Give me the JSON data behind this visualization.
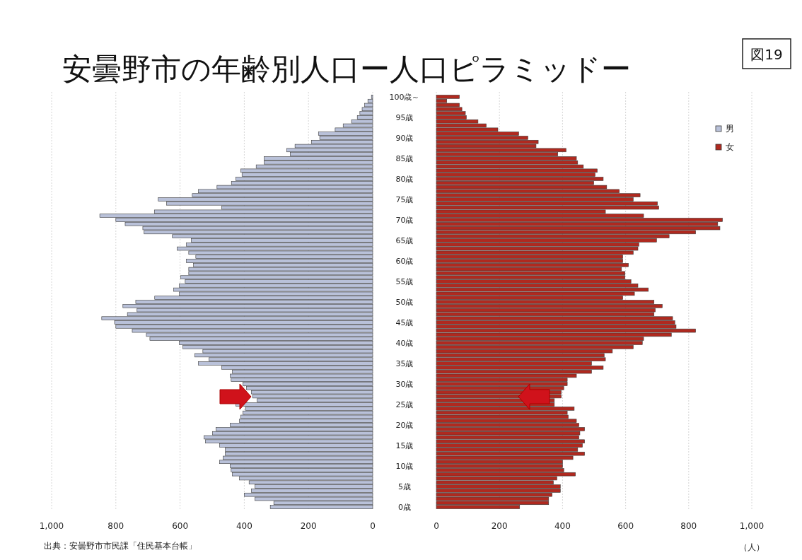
{
  "chart_data": [
    {
      "type": "bar",
      "orientation": "horizontal",
      "title": "安曇野市の年齢別人口ー人口ピラミッドー",
      "annotations": [
        "図19",
        "出典：安曇野市市民課「住民基本台帳」"
      ],
      "categories": [
        "100歳～",
        null,
        null,
        null,
        null,
        "95歳",
        null,
        null,
        null,
        null,
        "90歳",
        null,
        null,
        null,
        null,
        "85歳",
        null,
        null,
        null,
        null,
        "80歳",
        null,
        null,
        null,
        null,
        "75歳",
        null,
        null,
        null,
        null,
        "70歳",
        null,
        null,
        null,
        null,
        "65歳",
        null,
        null,
        null,
        null,
        "60歳",
        null,
        null,
        null,
        null,
        "55歳",
        null,
        null,
        null,
        null,
        "50歳",
        null,
        null,
        null,
        null,
        "45歳",
        null,
        null,
        null,
        null,
        "40歳",
        null,
        null,
        null,
        null,
        "35歳",
        null,
        null,
        null,
        null,
        "30歳",
        null,
        null,
        null,
        null,
        "25歳",
        null,
        null,
        null,
        null,
        "20歳",
        null,
        null,
        null,
        null,
        "15歳",
        null,
        null,
        null,
        null,
        "10歳",
        null,
        null,
        null,
        null,
        "5歳",
        null,
        null,
        null,
        null,
        "0歳"
      ],
      "series": [
        {
          "name": "男",
          "color": "#b9c1d9",
          "values": [
            4,
            15,
            25,
            33,
            40,
            48,
            66,
            92,
            117,
            169,
            165,
            191,
            242,
            268,
            257,
            338,
            338,
            363,
            411,
            407,
            426,
            440,
            485,
            543,
            562,
            668,
            642,
            470,
            680,
            850,
            800,
            771,
            716,
            712,
            624,
            565,
            580,
            609,
            573,
            551,
            580,
            558,
            573,
            573,
            598,
            584,
            602,
            620,
            602,
            679,
            738,
            778,
            734,
            764,
            844,
            804,
            800,
            749,
            705,
            694,
            602,
            591,
            529,
            554,
            510,
            543,
            470,
            437,
            444,
            441,
            404,
            393,
            378,
            374,
            360,
            426,
            396,
            404,
            411,
            415,
            444,
            488,
            499,
            525,
            521,
            477,
            459,
            459,
            466,
            477,
            444,
            441,
            437,
            415,
            385,
            367,
            378,
            400,
            367,
            308,
            319
          ]
        }
      ],
      "xlim": [
        1000,
        0
      ],
      "xticks": [
        {
          "value": 1000,
          "label": "1,000"
        },
        800,
        600,
        400,
        200,
        0
      ],
      "grid": "x",
      "legend": "top right"
    },
    {
      "type": "bar",
      "orientation": "horizontal",
      "xlabel": "（人）",
      "categories": [
        null,
        null,
        null,
        null,
        null,
        null,
        null,
        null,
        null,
        null,
        null,
        null,
        null,
        null,
        null,
        null,
        null,
        null,
        null,
        null,
        null,
        null,
        null,
        null,
        null,
        null,
        null,
        null,
        null,
        null,
        null,
        null,
        null,
        null,
        null,
        null,
        null,
        null,
        null,
        null,
        null,
        null,
        null,
        null,
        null,
        null,
        null,
        null,
        null,
        null,
        null,
        null,
        null,
        null,
        null,
        null,
        null,
        null,
        null,
        null,
        null,
        null,
        null,
        null,
        null,
        null,
        null,
        null,
        null,
        null,
        null,
        null,
        null,
        null,
        null,
        null,
        null,
        null,
        null,
        null,
        null,
        null,
        null,
        null,
        null,
        null,
        null,
        null,
        null,
        null,
        null,
        null,
        null,
        null,
        null,
        null,
        null,
        null,
        null,
        null,
        null
      ],
      "series": [
        {
          "name": "女",
          "color": "#b0291f",
          "values": [
            73,
            33,
            73,
            81,
            92,
            95,
            132,
            158,
            195,
            261,
            290,
            323,
            316,
            411,
            385,
            444,
            448,
            466,
            510,
            503,
            529,
            499,
            540,
            580,
            646,
            624,
            701,
            705,
            536,
            657,
            907,
            892,
            899,
            822,
            738,
            698,
            642,
            639,
            624,
            591,
            591,
            609,
            587,
            598,
            598,
            617,
            639,
            672,
            628,
            591,
            690,
            716,
            694,
            690,
            749,
            756,
            760,
            822,
            745,
            657,
            653,
            624,
            558,
            532,
            536,
            492,
            529,
            492,
            444,
            415,
            415,
            404,
            396,
            396,
            374,
            374,
            437,
            415,
            418,
            444,
            452,
            470,
            455,
            452,
            470,
            463,
            448,
            470,
            433,
            400,
            400,
            404,
            441,
            382,
            371,
            393,
            393,
            367,
            356,
            356,
            264
          ]
        }
      ],
      "xlim": [
        0,
        1000
      ],
      "xticks": [
        0,
        200,
        400,
        600,
        800,
        {
          "value": 1000,
          "label": "1,000"
        }
      ],
      "grid": "x",
      "legend": "top right"
    }
  ]
}
